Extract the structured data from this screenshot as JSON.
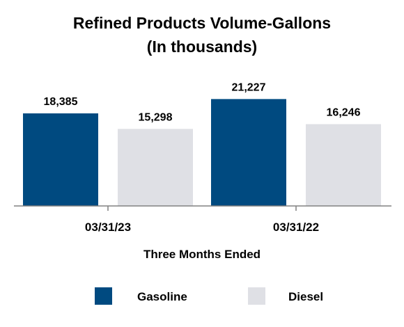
{
  "chart_data": {
    "type": "bar",
    "title_lines": [
      "Refined Products Volume-Gallons",
      "(In thousands)"
    ],
    "xlabel": "Three Months Ended",
    "ylabel": "",
    "categories": [
      "03/31/23",
      "03/31/22"
    ],
    "series": [
      {
        "name": "Gasoline",
        "color": "#004a80",
        "values": [
          18385,
          21227
        ],
        "labels": [
          "18,385",
          "21,227"
        ]
      },
      {
        "name": "Diesel",
        "color": "#dfe0e5",
        "values": [
          15298,
          16246
        ],
        "labels": [
          "15,298",
          "16,246"
        ]
      }
    ],
    "ylim": [
      0,
      25700
    ],
    "grid": false,
    "legend_position": "bottom"
  }
}
